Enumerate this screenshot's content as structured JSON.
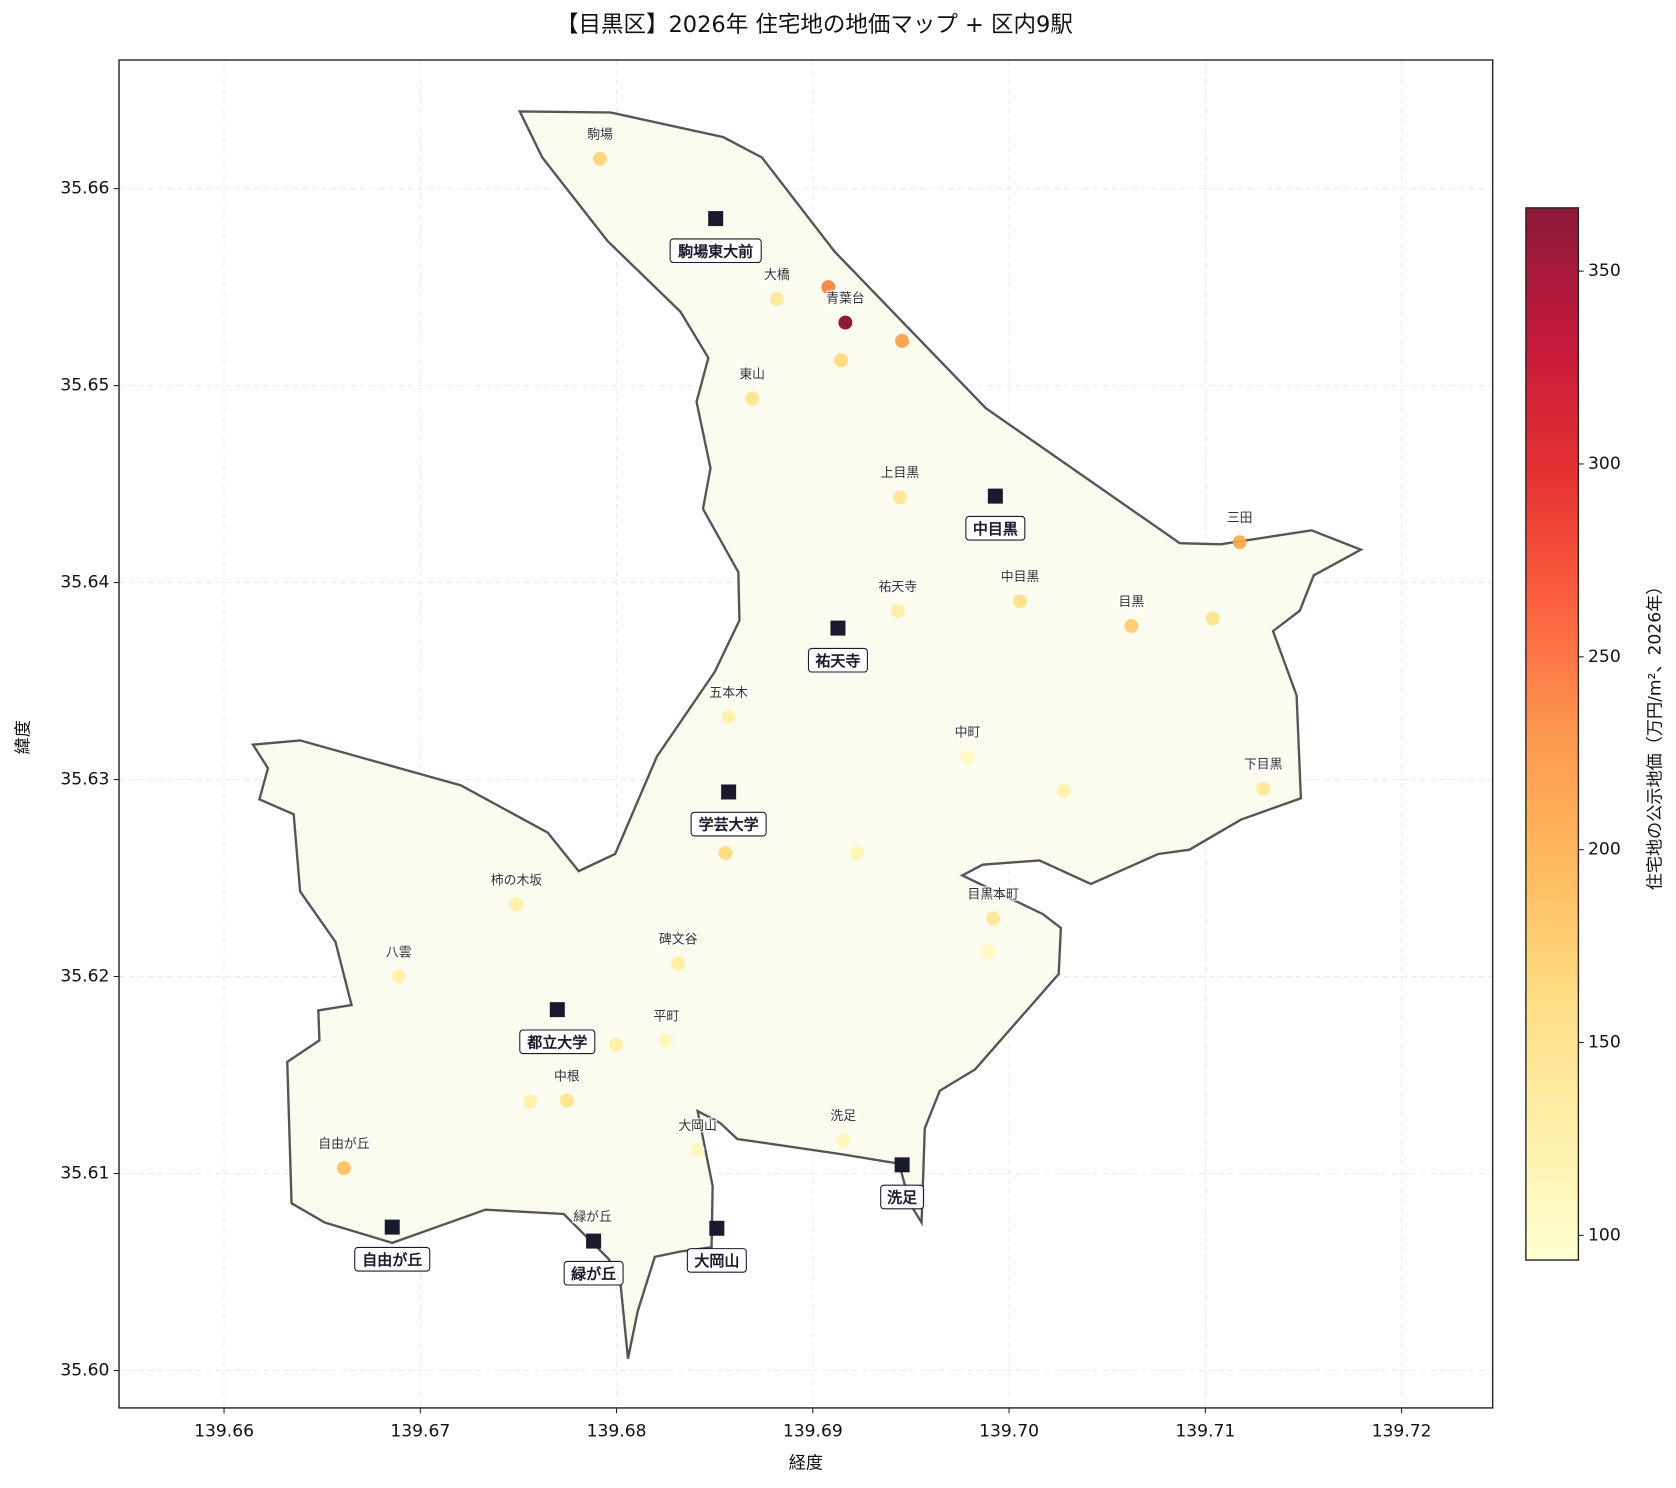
{
  "chart_data": {
    "type": "scatter",
    "title": "【目黒区】2026年 住宅地の地価マップ + 区内9駅",
    "x_label": "経度",
    "y_label": "緯度",
    "xlim": [
      139.65465,
      139.72464
    ],
    "ylim": [
      35.5981,
      35.66653
    ],
    "xticks": [
      139.66,
      139.67,
      139.68,
      139.69,
      {
        "value": 139.7,
        "label": "139.70"
      },
      139.71,
      139.72
    ],
    "yticks": [
      {
        "value": 35.6,
        "label": "35.60"
      },
      35.61,
      35.62,
      35.63,
      35.64,
      35.65,
      35.66
    ],
    "grid": true,
    "points": {
      "x": [
        139.67916,
        139.68817,
        139.69079,
        139.69166,
        139.69455,
        139.69144,
        139.68691,
        139.69444,
        139.71175,
        139.69433,
        139.70056,
        139.70623,
        139.71038,
        139.68571,
        139.69788,
        139.70279,
        139.71295,
        139.68555,
        139.69226,
        139.69919,
        139.69892,
        139.6749,
        139.6689,
        139.68314,
        139.68254,
        139.67998,
        139.67747,
        139.67561,
        139.66611,
        139.68413,
        139.69155,
        139.67878
      ],
      "y": [
        35.66152,
        35.6544,
        35.655,
        35.6532,
        35.65227,
        35.65129,
        35.64934,
        35.64433,
        35.64205,
        35.63856,
        35.63905,
        35.6378,
        35.63818,
        35.63318,
        35.63116,
        35.62942,
        35.62953,
        35.62627,
        35.62627,
        35.62295,
        35.62126,
        35.62366,
        35.62001,
        35.62066,
        35.61675,
        35.61653,
        35.6137,
        35.61365,
        35.61027,
        35.6112,
        35.61169,
        35.60657
      ],
      "values": [
        165,
        135,
        240,
        365,
        215,
        160,
        145,
        140,
        205,
        130,
        150,
        175,
        150,
        120,
        105,
        120,
        135,
        160,
        115,
        140,
        105,
        125,
        120,
        130,
        110,
        125,
        145,
        125,
        185,
        110,
        110,
        130
      ],
      "labels": [
        "駒場",
        "大橋",
        null,
        "青葉台",
        null,
        null,
        "東山",
        "上目黒",
        "三田",
        "祐天寺",
        "中目黒",
        "目黒",
        null,
        "五本木",
        "中町",
        null,
        "下目黒",
        null,
        null,
        "目黒本町",
        null,
        "柿の木坂",
        "八雲",
        "碑文谷",
        "平町",
        null,
        "中根",
        null,
        "自由が丘",
        "大岡山",
        "洗足",
        "緑が丘"
      ]
    },
    "colorbar": {
      "label": "住宅地の公示地価（万円/m²、2026年）",
      "clim": [
        93.6,
        366.4
      ],
      "ticks": [
        100,
        150,
        200,
        250,
        300,
        350
      ],
      "colormap": [
        "#ffffcc",
        "#ffeda0",
        "#fed976",
        "#feb24c",
        "#fd8d3c",
        "#fc4e2a",
        "#e31a1c",
        "#bd0026",
        "#800026"
      ]
    },
    "stations": {
      "names": [
        "駒場東大前",
        "中目黒",
        "祐天寺",
        "学芸大学",
        "都立大学",
        "洗足",
        "自由が丘",
        "緑が丘",
        "大岡山"
      ],
      "x": [
        139.68505,
        139.6993,
        139.69128,
        139.68571,
        139.67698,
        139.69455,
        139.66857,
        139.67883,
        139.68511
      ],
      "y": [
        35.65848,
        35.64439,
        35.63769,
        35.62937,
        35.61832,
        35.61044,
        35.60728,
        35.60657,
        35.60722
      ],
      "color": "#1a1a2e"
    }
  }
}
